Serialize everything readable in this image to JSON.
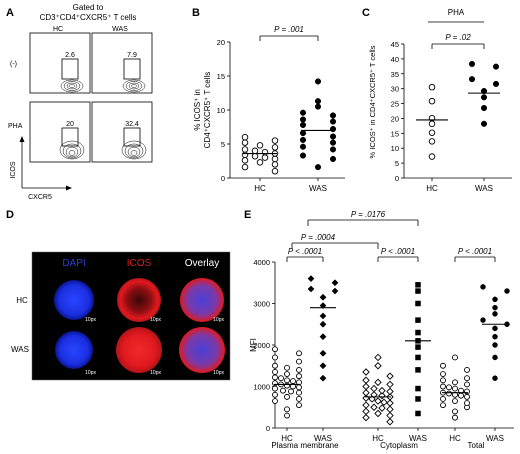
{
  "panels": {
    "A": {
      "letter": "A",
      "title_line1": "Gated to",
      "title_line2": "CD3⁺CD4⁺CXCR5⁺ T cells",
      "col_hc": "HC",
      "col_was": "WAS",
      "row_neg": "(-)",
      "row_pha": "PHA",
      "y_axis": "ICOS",
      "x_axis": "CXCR5",
      "values": {
        "neg_hc": "2.6",
        "neg_was": "7.9",
        "pha_hc": "20",
        "pha_was": "32.4"
      }
    },
    "B": {
      "letter": "B",
      "ylabel_line1": "% ICOS⁺ in",
      "ylabel_line2": "CD4⁺CXCR5⁺ T cells",
      "p_value": "P = .001",
      "yticks": [
        "0",
        "5",
        "10",
        "15",
        "20"
      ],
      "categories": [
        "HC",
        "WAS"
      ]
    },
    "C": {
      "letter": "C",
      "header": "PHA",
      "ylabel": "% ICOS⁺ in CD4⁺CXCR5⁺ T cells",
      "p_value": "P = .02",
      "yticks": [
        "0",
        "5",
        "10",
        "15",
        "20",
        "25",
        "30",
        "35",
        "40",
        "45"
      ],
      "categories": [
        "HC",
        "WAS"
      ]
    },
    "D": {
      "letter": "D",
      "col_dapi": "DAPI",
      "col_icos": "ICOS",
      "col_overlay": "Overlay",
      "row_hc": "HC",
      "row_was": "WAS",
      "scale": "10px",
      "colors": {
        "dapi": "#1a2fe0",
        "icos": "#e0191f",
        "dapi_label": "#2b3fd6",
        "icos_label": "#d81e1e"
      }
    },
    "E": {
      "letter": "E",
      "ylabel": "MFI",
      "yticks": [
        "0",
        "1000",
        "2000",
        "3000",
        "4000"
      ],
      "categories": [
        "HC",
        "WAS",
        "HC",
        "WAS",
        "HC",
        "WAS"
      ],
      "groups": [
        "Plasma membrane",
        "Cytoplasm",
        "Total"
      ],
      "p_pm": "P < .0001",
      "p_cyto": "P < .0001",
      "p_total": "P < .0001",
      "p_bracket1": "P = .0004",
      "p_bracket2": "P = .0176"
    }
  },
  "chart_data": [
    {
      "type": "scatter",
      "panel": "B",
      "ylim": [
        0,
        20
      ],
      "categories": [
        "HC",
        "WAS"
      ],
      "series": [
        {
          "name": "HC",
          "marker": "open-circle",
          "mean": 3.6,
          "values": [
            1.0,
            1.6,
            2.0,
            2.3,
            2.6,
            2.8,
            3.0,
            3.2,
            3.4,
            3.6,
            3.8,
            4.0,
            4.2,
            4.5,
            4.8,
            5.2,
            5.5,
            6.0
          ]
        },
        {
          "name": "WAS",
          "marker": "filled-circle",
          "mean": 7.0,
          "values": [
            1.6,
            2.8,
            3.3,
            4.2,
            4.6,
            5.2,
            5.6,
            6.1,
            6.6,
            7.2,
            7.8,
            8.3,
            8.6,
            9.2,
            9.6,
            10.5,
            11.3,
            14.2
          ]
        }
      ]
    },
    {
      "type": "scatter",
      "panel": "C",
      "ylim": [
        0,
        45
      ],
      "categories": [
        "HC",
        "WAS"
      ],
      "series": [
        {
          "name": "HC",
          "marker": "open-circle",
          "mean": 19.5,
          "values": [
            7.2,
            12.3,
            15.2,
            18.2,
            20.1,
            25.8,
            30.5
          ]
        },
        {
          "name": "WAS",
          "marker": "filled-circle",
          "mean": 28.5,
          "values": [
            18.2,
            23.5,
            27.1,
            29.2,
            31.6,
            33.2,
            37.4,
            38.3
          ]
        }
      ]
    },
    {
      "type": "scatter",
      "panel": "E",
      "ylim": [
        0,
        4000
      ],
      "categories": [
        "HC",
        "WAS",
        "HC",
        "WAS",
        "HC",
        "WAS"
      ],
      "groups": [
        "Plasma membrane",
        "Cytoplasm",
        "Total"
      ],
      "series": [
        {
          "name": "Plasma membrane HC",
          "marker": "open-circle",
          "mean": 1050,
          "values": [
            300,
            450,
            550,
            650,
            700,
            750,
            800,
            850,
            880,
            900,
            950,
            980,
            1000,
            1020,
            1050,
            1080,
            1100,
            1130,
            1150,
            1200,
            1220,
            1250,
            1300,
            1350,
            1400,
            1450,
            1500,
            1600,
            1700,
            1800,
            1900
          ]
        },
        {
          "name": "Plasma membrane WAS",
          "marker": "filled-diamond",
          "mean": 2900,
          "values": [
            1200,
            1500,
            1800,
            2200,
            2500,
            2700,
            2950,
            3150,
            3300,
            3350,
            3500,
            3600
          ]
        },
        {
          "name": "Cytoplasm HC",
          "marker": "open-diamond",
          "mean": 750,
          "values": [
            150,
            250,
            300,
            350,
            400,
            450,
            480,
            500,
            550,
            600,
            620,
            650,
            700,
            720,
            750,
            780,
            800,
            850,
            880,
            900,
            950,
            1000,
            1050,
            1100,
            1150,
            1250,
            1350,
            1500,
            1700
          ]
        },
        {
          "name": "Cytoplasm WAS",
          "marker": "filled-square",
          "mean": 2100,
          "values": [
            350,
            700,
            950,
            1400,
            1700,
            1950,
            2100,
            2300,
            2600,
            3000,
            3300,
            3450
          ]
        },
        {
          "name": "Total HC",
          "marker": "open-circle",
          "mean": 850,
          "values": [
            250,
            400,
            500,
            550,
            600,
            650,
            700,
            750,
            780,
            800,
            830,
            850,
            880,
            900,
            950,
            980,
            1000,
            1050,
            1100,
            1150,
            1200,
            1300,
            1400,
            1500,
            1700
          ]
        },
        {
          "name": "Total WAS",
          "marker": "filled-circle",
          "mean": 2500,
          "values": [
            1200,
            1700,
            2000,
            2200,
            2400,
            2500,
            2600,
            2750,
            2900,
            3100,
            3300,
            3400
          ]
        }
      ]
    }
  ]
}
